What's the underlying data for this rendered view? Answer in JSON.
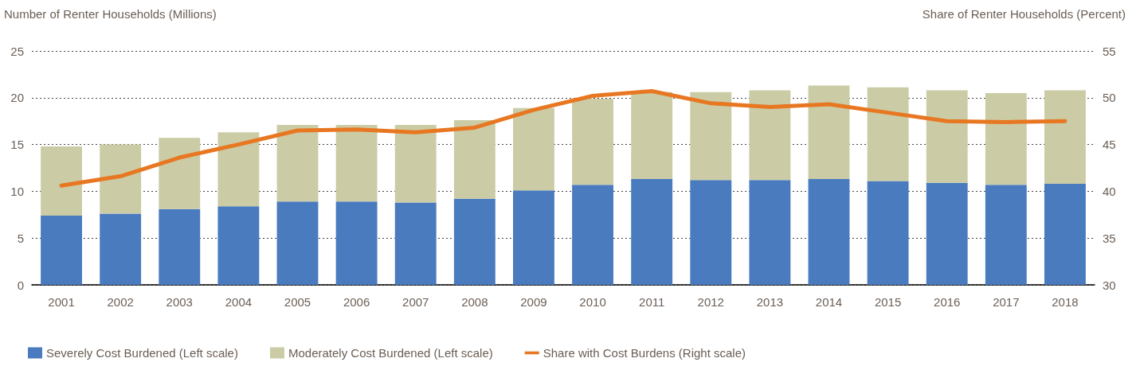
{
  "chart_data": {
    "type": "bar",
    "stacked": true,
    "ylabel": "Number of Renter Households (Millions)",
    "y2label": "Share of Renter Households (Percent)",
    "categories": [
      "2001",
      "2002",
      "2003",
      "2004",
      "2005",
      "2006",
      "2007",
      "2008",
      "2009",
      "2010",
      "2011",
      "2012",
      "2013",
      "2014",
      "2015",
      "2016",
      "2017",
      "2018"
    ],
    "series": [
      {
        "name": "Severely Cost Burdened (Left scale)",
        "color": "#4a7bbf",
        "values": [
          7.4,
          7.6,
          8.1,
          8.4,
          8.9,
          8.9,
          8.8,
          9.2,
          10.1,
          10.7,
          11.3,
          11.2,
          11.2,
          11.3,
          11.1,
          10.9,
          10.7,
          10.8
        ]
      },
      {
        "name": "Moderately Cost Burdened (Left scale)",
        "color": "#cbcca5",
        "values": [
          7.4,
          7.4,
          7.6,
          7.9,
          8.2,
          8.2,
          8.3,
          8.4,
          8.8,
          9.2,
          9.3,
          9.4,
          9.6,
          10.0,
          10.0,
          9.9,
          9.8,
          10.0
        ]
      },
      {
        "name": "Share with Cost Burdens (Right scale)",
        "type": "line",
        "axis": "y2",
        "color": "#e87722",
        "line_style": "solid",
        "values": [
          40.6,
          41.6,
          43.6,
          45.0,
          46.5,
          46.6,
          46.3,
          46.8,
          48.7,
          50.2,
          50.7,
          49.4,
          49.0,
          49.3,
          48.4,
          47.5,
          47.4,
          47.5
        ]
      }
    ],
    "ylim": [
      0,
      25
    ],
    "yticks": [
      0,
      5,
      10,
      15,
      20,
      25
    ],
    "y2lim": [
      30,
      55
    ],
    "y2ticks": [
      30,
      35,
      40,
      45,
      50,
      55
    ],
    "grid": "y",
    "legend": "bottom left",
    "marker": "none"
  }
}
